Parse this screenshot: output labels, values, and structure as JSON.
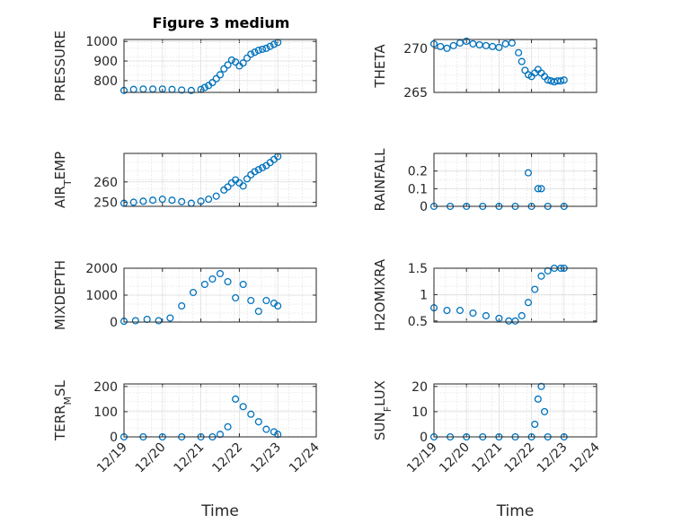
{
  "title": "Figure 3 medium",
  "colors": {
    "marker": "#0072BD",
    "axes": "#262626"
  },
  "chart_data": [
    {
      "type": "scatter",
      "ylabel": "PRESSURE",
      "ylim": [
        740,
        1010
      ],
      "yticks": [
        800,
        900,
        1000
      ],
      "x": [
        0,
        0.25,
        0.5,
        0.75,
        1,
        1.25,
        1.5,
        1.75,
        2,
        2.1,
        2.2,
        2.3,
        2.4,
        2.5,
        2.6,
        2.7,
        2.8,
        2.9,
        3,
        3.1,
        3.2,
        3.3,
        3.4,
        3.5,
        3.6,
        3.7,
        3.8,
        3.9,
        4
      ],
      "y": [
        750,
        755,
        757,
        757,
        757,
        755,
        752,
        750,
        755,
        765,
        775,
        790,
        810,
        830,
        860,
        880,
        905,
        895,
        875,
        890,
        915,
        935,
        945,
        955,
        960,
        965,
        975,
        985,
        995
      ]
    },
    {
      "type": "scatter",
      "ylabel": "THETA",
      "ylim": [
        265,
        271
      ],
      "yticks": [
        265,
        270
      ],
      "x": [
        0,
        0.2,
        0.4,
        0.6,
        0.8,
        1,
        1.2,
        1.4,
        1.6,
        1.8,
        2,
        2.2,
        2.4,
        2.6,
        2.7,
        2.8,
        2.9,
        3,
        3.1,
        3.2,
        3.3,
        3.4,
        3.5,
        3.6,
        3.7,
        3.8,
        3.9,
        4
      ],
      "y": [
        270.5,
        270.2,
        270,
        270.3,
        270.6,
        270.8,
        270.5,
        270.4,
        270.3,
        270.2,
        270.1,
        270.5,
        270.6,
        269.5,
        268.5,
        267.5,
        267,
        266.8,
        267.2,
        267.6,
        267.2,
        266.8,
        266.4,
        266.3,
        266.2,
        266.3,
        266.3,
        266.4
      ]
    },
    {
      "type": "scatter",
      "ylabel": "AIR_TEMP",
      "ylim": [
        248,
        274
      ],
      "yticks": [
        250,
        260
      ],
      "x": [
        0,
        0.25,
        0.5,
        0.75,
        1,
        1.25,
        1.5,
        1.75,
        2,
        2.2,
        2.4,
        2.6,
        2.7,
        2.8,
        2.9,
        3,
        3.1,
        3.2,
        3.3,
        3.4,
        3.5,
        3.6,
        3.7,
        3.8,
        3.9,
        4
      ],
      "y": [
        249.5,
        250,
        250.5,
        251,
        251.5,
        251,
        250.3,
        249.5,
        250.5,
        251.5,
        253,
        256,
        257.5,
        259.5,
        261,
        259.5,
        258,
        261.5,
        263.5,
        265,
        266,
        267,
        268,
        269.5,
        271,
        272.5
      ]
    },
    {
      "type": "scatter",
      "ylabel": "RAINFALL",
      "ylim": [
        0,
        0.3
      ],
      "yticks": [
        0,
        0.1,
        0.2
      ],
      "x": [
        0,
        0.5,
        1,
        1.5,
        2,
        2.5,
        2.9,
        3,
        3.2,
        3.3,
        3.5,
        4
      ],
      "y": [
        0,
        0,
        0,
        0,
        0,
        0,
        0.19,
        0,
        0.1,
        0.1,
        0,
        0
      ]
    },
    {
      "type": "scatter",
      "ylabel": "MIXDEPTH",
      "ylim": [
        0,
        2000
      ],
      "yticks": [
        0,
        1000,
        2000
      ],
      "x": [
        0,
        0.3,
        0.6,
        0.9,
        1.2,
        1.5,
        1.8,
        2.1,
        2.3,
        2.5,
        2.7,
        2.9,
        3.1,
        3.3,
        3.5,
        3.7,
        3.9,
        4
      ],
      "y": [
        30,
        50,
        100,
        50,
        150,
        600,
        1100,
        1400,
        1600,
        1800,
        1500,
        900,
        1400,
        800,
        400,
        800,
        700,
        600
      ]
    },
    {
      "type": "scatter",
      "ylabel": "H2OMIXRA",
      "ylim": [
        0.48,
        1.5
      ],
      "yticks": [
        0.5,
        1,
        1.5
      ],
      "x": [
        0,
        0.4,
        0.8,
        1.2,
        1.6,
        2,
        2.3,
        2.5,
        2.7,
        2.9,
        3.1,
        3.3,
        3.5,
        3.7,
        3.9,
        4
      ],
      "y": [
        0.75,
        0.7,
        0.7,
        0.65,
        0.6,
        0.55,
        0.5,
        0.5,
        0.6,
        0.85,
        1.1,
        1.35,
        1.45,
        1.5,
        1.5,
        1.5
      ]
    },
    {
      "type": "scatter",
      "ylabel": "TERR_MSL",
      "ylim": [
        0,
        210
      ],
      "yticks": [
        0,
        100,
        200
      ],
      "x": [
        0,
        0.5,
        1,
        1.5,
        2,
        2.3,
        2.5,
        2.7,
        2.9,
        3.1,
        3.3,
        3.5,
        3.7,
        3.9,
        4
      ],
      "y": [
        0,
        0,
        0,
        0,
        0,
        0,
        10,
        40,
        150,
        120,
        90,
        60,
        30,
        20,
        10
      ]
    },
    {
      "type": "scatter",
      "ylabel": "SUN_FLUX",
      "ylim": [
        0,
        21
      ],
      "yticks": [
        0,
        10,
        20
      ],
      "x": [
        0,
        0.5,
        1,
        1.5,
        2,
        2.5,
        3,
        3.1,
        3.2,
        3.3,
        3.4,
        3.5,
        4
      ],
      "y": [
        0,
        0,
        0,
        0,
        0,
        0,
        0,
        5,
        15,
        20,
        10,
        0,
        0
      ]
    }
  ],
  "xaxis": {
    "label": "Time",
    "xlim": [
      0,
      5
    ],
    "ticks": [
      0,
      1,
      2,
      3,
      4,
      5
    ],
    "ticklabels": [
      "12/19",
      "12/20",
      "12/21",
      "12/22",
      "12/23",
      "12/24"
    ]
  }
}
